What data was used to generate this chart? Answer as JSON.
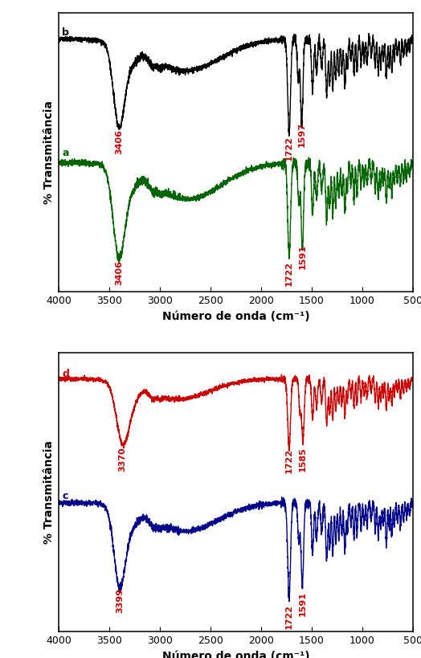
{
  "xlim": [
    4000,
    500
  ],
  "xticks": [
    4000,
    3500,
    3000,
    2500,
    2000,
    1500,
    1000,
    500
  ],
  "xlabel": "Número de onda (cm⁻¹)",
  "ylabel": "% Transmitância",
  "annotation_color": "#cc0000",
  "annotation_fontsize": 8,
  "label_fontsize": 10,
  "tick_fontsize": 9,
  "spectra_linewidth": 1.0,
  "colors": {
    "black": "#000000",
    "green": "#006400",
    "red": "#cc0000",
    "blue": "#00008B"
  }
}
